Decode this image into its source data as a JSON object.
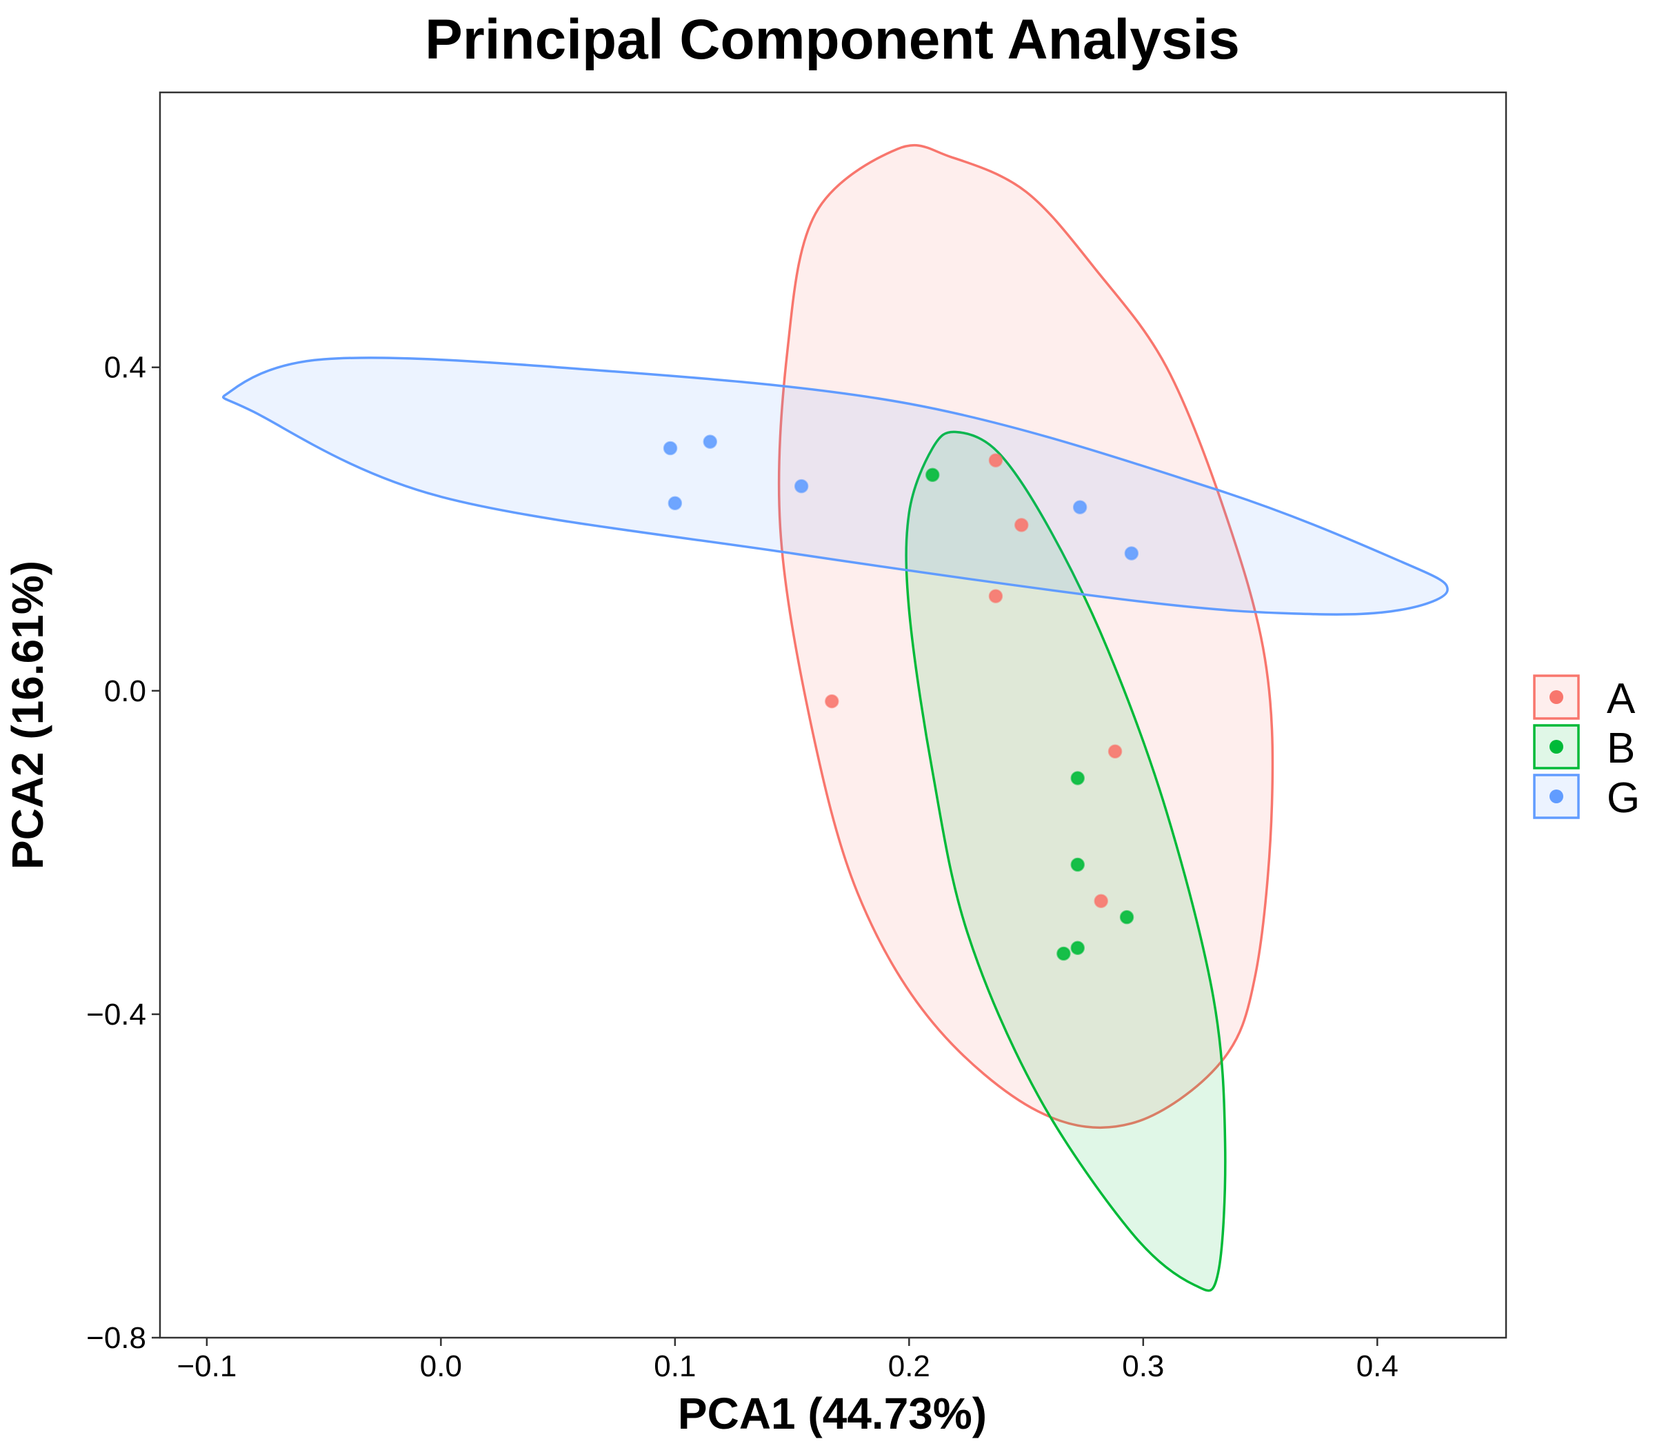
{
  "chart_data": {
    "type": "scatter",
    "title": "Principal Component Analysis",
    "xlabel": "PCA1 (44.73%)",
    "ylabel": "PCA2 (16.61%)",
    "xlim": [
      -0.12,
      0.455
    ],
    "ylim": [
      -0.8,
      0.74
    ],
    "x_ticks": [
      -0.1,
      0.0,
      0.1,
      0.2,
      0.3,
      0.4
    ],
    "x_tick_labels": [
      "−0.1",
      "0.0",
      "0.1",
      "0.2",
      "0.3",
      "0.4"
    ],
    "y_ticks": [
      -0.8,
      -0.4,
      0.0,
      0.4
    ],
    "y_tick_labels": [
      "−0.8",
      "−0.4",
      "0.0",
      "0.4"
    ],
    "grid": false,
    "legend_position": "right",
    "series": [
      {
        "name": "A",
        "color": "#F8766D",
        "points": [
          [
            0.237,
            0.285
          ],
          [
            0.248,
            0.205
          ],
          [
            0.237,
            0.117
          ],
          [
            0.167,
            -0.013
          ],
          [
            0.288,
            -0.075
          ],
          [
            0.282,
            -0.26
          ]
        ],
        "ellipse": [
          [
            0.195,
            0.67
          ],
          [
            0.218,
            0.66
          ],
          [
            0.25,
            0.617
          ],
          [
            0.28,
            0.52
          ],
          [
            0.31,
            0.4
          ],
          [
            0.335,
            0.22
          ],
          [
            0.352,
            0.04
          ],
          [
            0.355,
            -0.14
          ],
          [
            0.348,
            -0.35
          ],
          [
            0.333,
            -0.46
          ],
          [
            0.295,
            -0.535
          ],
          [
            0.255,
            -0.52
          ],
          [
            0.21,
            -0.41
          ],
          [
            0.178,
            -0.25
          ],
          [
            0.158,
            -0.04
          ],
          [
            0.145,
            0.2
          ],
          [
            0.148,
            0.42
          ],
          [
            0.16,
            0.59
          ]
        ]
      },
      {
        "name": "B",
        "color": "#00BA38",
        "points": [
          [
            0.21,
            0.267
          ],
          [
            0.272,
            -0.108
          ],
          [
            0.272,
            -0.215
          ],
          [
            0.293,
            -0.28
          ],
          [
            0.272,
            -0.318
          ],
          [
            0.266,
            -0.325
          ]
        ],
        "ellipse": [
          [
            0.22,
            0.32
          ],
          [
            0.238,
            0.295
          ],
          [
            0.26,
            0.2
          ],
          [
            0.285,
            0.05
          ],
          [
            0.31,
            -0.15
          ],
          [
            0.33,
            -0.38
          ],
          [
            0.335,
            -0.56
          ],
          [
            0.332,
            -0.72
          ],
          [
            0.322,
            -0.735
          ],
          [
            0.295,
            -0.67
          ],
          [
            0.255,
            -0.5
          ],
          [
            0.225,
            -0.3
          ],
          [
            0.21,
            -0.1
          ],
          [
            0.2,
            0.1
          ],
          [
            0.2,
            0.22
          ],
          [
            0.21,
            0.3
          ]
        ]
      },
      {
        "name": "G",
        "color": "#619CFF",
        "points": [
          [
            0.098,
            0.3
          ],
          [
            0.115,
            0.308
          ],
          [
            0.1,
            0.232
          ],
          [
            0.154,
            0.253
          ],
          [
            0.273,
            0.227
          ],
          [
            0.295,
            0.17
          ]
        ],
        "ellipse": [
          [
            -0.09,
            0.37
          ],
          [
            -0.05,
            0.41
          ],
          [
            0.05,
            0.4
          ],
          [
            0.2,
            0.355
          ],
          [
            0.33,
            0.25
          ],
          [
            0.41,
            0.16
          ],
          [
            0.43,
            0.125
          ],
          [
            0.41,
            0.1
          ],
          [
            0.37,
            0.095
          ],
          [
            0.3,
            0.11
          ],
          [
            0.15,
            0.17
          ],
          [
            0.0,
            0.24
          ],
          [
            -0.08,
            0.345
          ]
        ]
      }
    ]
  }
}
